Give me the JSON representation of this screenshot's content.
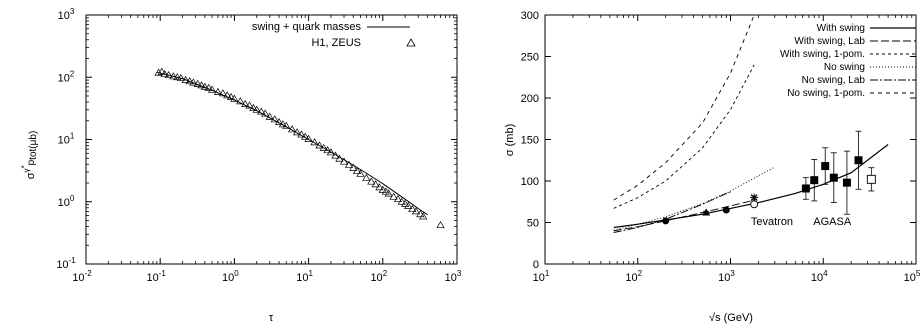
{
  "chart_data": [
    {
      "type": "scatter",
      "xscale": "log",
      "yscale": "log",
      "xlim": [
        0.01,
        1000
      ],
      "ylim": [
        0.1,
        1000
      ],
      "xlabel": "τ",
      "ylabel_main": "σ",
      "ylabel_sup": "γ",
      "ylabel_sup2": "*",
      "ylabel_sub": "p",
      "ylabel_tail": "tot(μb)",
      "x_ticks": [
        {
          "v": 0.01,
          "base": "10",
          "exp": "-2"
        },
        {
          "v": 0.1,
          "base": "10",
          "exp": "-1"
        },
        {
          "v": 1,
          "base": "10",
          "exp": "0"
        },
        {
          "v": 10,
          "base": "10",
          "exp": "1"
        },
        {
          "v": 100,
          "base": "10",
          "exp": "2"
        },
        {
          "v": 1000,
          "base": "10",
          "exp": "3"
        }
      ],
      "y_ticks": [
        {
          "v": 0.1,
          "base": "10",
          "exp": "-1"
        },
        {
          "v": 1,
          "base": "10",
          "exp": "0"
        },
        {
          "v": 10,
          "base": "10",
          "exp": "1"
        },
        {
          "v": 100,
          "base": "10",
          "exp": "2"
        },
        {
          "v": 1000,
          "base": "10",
          "exp": "3"
        }
      ],
      "legend_position": "top-right",
      "series": [
        {
          "name": "swing + quark masses",
          "style": "line",
          "x": [
            0.09,
            0.2,
            0.5,
            1,
            2,
            5,
            10,
            20,
            50,
            100,
            200,
            300,
            400
          ],
          "y": [
            120,
            95,
            62,
            43,
            29,
            16,
            10,
            6.3,
            3.3,
            1.95,
            1.1,
            0.78,
            0.62
          ]
        },
        {
          "name": "H1, ZEUS",
          "style": "triangle",
          "x": [
            0.095,
            0.105,
            0.115,
            0.13,
            0.15,
            0.17,
            0.19,
            0.22,
            0.25,
            0.28,
            0.32,
            0.36,
            0.4,
            0.45,
            0.5,
            0.6,
            0.7,
            0.8,
            0.9,
            1.0,
            1.2,
            1.4,
            1.6,
            1.8,
            2.0,
            2.3,
            2.6,
            3.0,
            3.5,
            4.0,
            4.5,
            5,
            6,
            7,
            8,
            9,
            10,
            12,
            14,
            16,
            18,
            20,
            23,
            26,
            30,
            35,
            40,
            45,
            50,
            60,
            70,
            80,
            90,
            100,
            110,
            120,
            140,
            160,
            180,
            200,
            220,
            250,
            280,
            320,
            350,
            600
          ],
          "y": [
            118,
            122,
            112,
            108,
            103,
            100,
            97,
            90,
            86,
            82,
            78,
            74,
            70,
            67,
            63,
            58,
            55,
            51,
            48,
            45,
            41,
            37,
            35,
            32,
            30,
            28,
            26,
            23,
            21,
            19,
            17.5,
            16.5,
            14.5,
            13,
            12,
            11,
            10.2,
            9,
            8,
            7.3,
            6.7,
            6.2,
            5.5,
            4.9,
            4.4,
            3.9,
            3.5,
            3.1,
            2.8,
            2.4,
            2.1,
            1.9,
            1.7,
            1.55,
            1.45,
            1.35,
            1.2,
            1.1,
            1.0,
            0.92,
            0.85,
            0.76,
            0.7,
            0.63,
            0.58,
            0.42
          ]
        }
      ]
    },
    {
      "type": "line",
      "xscale": "log",
      "yscale": "linear",
      "xlim": [
        10,
        100000
      ],
      "ylim": [
        0,
        300
      ],
      "xlabel": "√s (GeV)",
      "ylabel": "σ (mb)",
      "x_ticks": [
        {
          "v": 10,
          "base": "10",
          "exp": "1"
        },
        {
          "v": 100,
          "base": "10",
          "exp": "2"
        },
        {
          "v": 1000,
          "base": "10",
          "exp": "3"
        },
        {
          "v": 10000,
          "base": "10",
          "exp": "4"
        },
        {
          "v": 100000,
          "base": "10",
          "exp": "5"
        }
      ],
      "y_ticks": [
        0,
        50,
        100,
        150,
        200,
        250,
        300
      ],
      "legend_position": "top-right",
      "annotations": [
        {
          "text": "Tevatron",
          "x": 2800,
          "y": 52
        },
        {
          "text": "AGASA",
          "x": 12500,
          "y": 52
        }
      ],
      "series": [
        {
          "name": "With swing",
          "dash": "",
          "x": [
            55,
            100,
            200,
            500,
            1000,
            2000,
            5000,
            10000,
            20000,
            50000
          ],
          "y": [
            44,
            48,
            53,
            60,
            67,
            74,
            85,
            96,
            110,
            144
          ]
        },
        {
          "name": "With swing, Lab",
          "dash": "8,3",
          "x": [
            55,
            100,
            200,
            500,
            1000,
            1800
          ],
          "y": [
            40,
            45,
            52,
            62,
            70,
            77
          ]
        },
        {
          "name": "With swing, 1-pom.",
          "dash": "3,3",
          "x": [
            55,
            100,
            200,
            500,
            1000,
            1800
          ],
          "y": [
            67,
            80,
            100,
            140,
            186,
            240
          ]
        },
        {
          "name": "No swing",
          "dash": "1,2",
          "x": [
            55,
            100,
            200,
            500,
            1000,
            3000
          ],
          "y": [
            41,
            48,
            57,
            73,
            88,
            117
          ]
        },
        {
          "name": "No swing, Lab",
          "dash": "8,2,2,2",
          "x": [
            55,
            100,
            200,
            500,
            1000
          ],
          "y": [
            38,
            44,
            54,
            72,
            87
          ]
        },
        {
          "name": "No swing, 1-pom.",
          "dash": "4,4",
          "x": [
            55,
            100,
            200,
            500,
            1000,
            1800
          ],
          "y": [
            77,
            95,
            122,
            170,
            230,
            300
          ]
        }
      ],
      "points": [
        {
          "marker": "circle-filled",
          "x": 200,
          "y": 52
        },
        {
          "marker": "circle-filled",
          "x": 900,
          "y": 65
        },
        {
          "marker": "triangle-filled",
          "x": 546,
          "y": 62,
          "err": 1.5
        },
        {
          "marker": "star",
          "x": 1800,
          "y": 80,
          "err": 2
        },
        {
          "marker": "circle-open",
          "x": 1800,
          "y": 72,
          "err": 2
        },
        {
          "marker": "square-filled",
          "x": 6500,
          "y": 91,
          "err": 13
        },
        {
          "marker": "square-filled",
          "x": 8000,
          "y": 101,
          "err": 25
        },
        {
          "marker": "square-filled",
          "x": 10500,
          "y": 118,
          "err": 22
        },
        {
          "marker": "square-filled",
          "x": 13000,
          "y": 104,
          "err": 30
        },
        {
          "marker": "square-filled",
          "x": 18000,
          "y": 98,
          "err": 38
        },
        {
          "marker": "square-filled",
          "x": 24000,
          "y": 125,
          "err": 35
        },
        {
          "marker": "square-open",
          "x": 33000,
          "y": 102,
          "err": 14
        }
      ]
    }
  ]
}
